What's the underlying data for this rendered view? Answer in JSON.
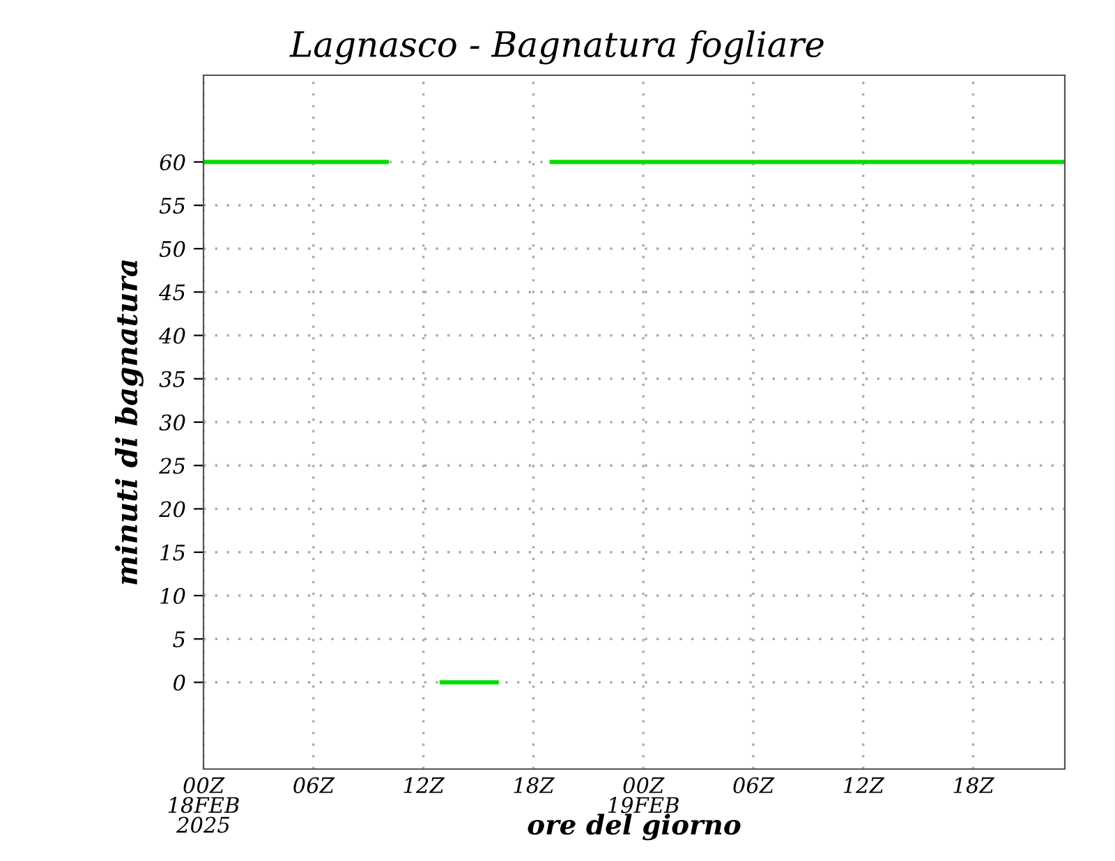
{
  "chart_data": {
    "type": "line",
    "title": "Lagnasco - Bagnatura fogliare",
    "xlabel": "ore del giorno",
    "ylabel": "minuti di bagnatura",
    "x": [
      "2025-02-18T00:00",
      "2025-02-18T01:00",
      "2025-02-18T02:00",
      "2025-02-18T03:00",
      "2025-02-18T04:00",
      "2025-02-18T05:00",
      "2025-02-18T06:00",
      "2025-02-18T07:00",
      "2025-02-18T08:00",
      "2025-02-18T09:00",
      "2025-02-18T10:00",
      "2025-02-18T11:00",
      "2025-02-18T12:00",
      "2025-02-18T13:00",
      "2025-02-18T14:00",
      "2025-02-18T15:00",
      "2025-02-18T16:00",
      "2025-02-18T17:00",
      "2025-02-18T18:00",
      "2025-02-18T19:00",
      "2025-02-18T20:00",
      "2025-02-18T21:00",
      "2025-02-18T22:00",
      "2025-02-18T23:00",
      "2025-02-19T00:00",
      "2025-02-19T01:00",
      "2025-02-19T02:00",
      "2025-02-19T03:00",
      "2025-02-19T04:00",
      "2025-02-19T05:00",
      "2025-02-19T06:00",
      "2025-02-19T07:00",
      "2025-02-19T08:00",
      "2025-02-19T09:00",
      "2025-02-19T10:00",
      "2025-02-19T11:00",
      "2025-02-19T12:00",
      "2025-02-19T13:00",
      "2025-02-19T14:00",
      "2025-02-19T15:00",
      "2025-02-19T16:00",
      "2025-02-19T17:00",
      "2025-02-19T18:00",
      "2025-02-19T19:00",
      "2025-02-19T20:00",
      "2025-02-19T21:00",
      "2025-02-19T22:00",
      "2025-02-19T23:00"
    ],
    "series": [
      {
        "color": "#00dd00",
        "values": [
          60,
          60,
          60,
          60,
          60,
          60,
          60,
          60,
          60,
          60,
          60,
          null,
          null,
          0,
          0,
          0,
          0,
          null,
          null,
          60,
          60,
          60,
          60,
          60,
          60,
          60,
          60,
          60,
          60,
          60,
          60,
          60,
          60,
          60,
          60,
          60,
          60,
          60,
          60,
          60,
          60,
          60,
          60,
          60,
          60,
          60,
          60,
          60
        ]
      }
    ],
    "xlim": [
      "2025-02-18T00:00",
      "2025-02-19T23:00"
    ],
    "xticks": [
      {
        "value": "2025-02-18T00:00",
        "label": "00Z\n18FEB\n2025"
      },
      {
        "value": "2025-02-18T06:00",
        "label": "06Z"
      },
      {
        "value": "2025-02-18T12:00",
        "label": "12Z"
      },
      {
        "value": "2025-02-18T18:00",
        "label": "18Z"
      },
      {
        "value": "2025-02-19T00:00",
        "label": "00Z\n19FEB"
      },
      {
        "value": "2025-02-19T06:00",
        "label": "06Z"
      },
      {
        "value": "2025-02-19T12:00",
        "label": "12Z"
      },
      {
        "value": "2025-02-19T18:00",
        "label": "18Z"
      }
    ],
    "ylim": [
      -10,
      70
    ],
    "yticks": [
      0,
      5,
      10,
      15,
      20,
      25,
      30,
      35,
      40,
      45,
      50,
      55,
      60
    ],
    "grid": true,
    "legend": false,
    "marker": "none",
    "line_style": "solid"
  }
}
